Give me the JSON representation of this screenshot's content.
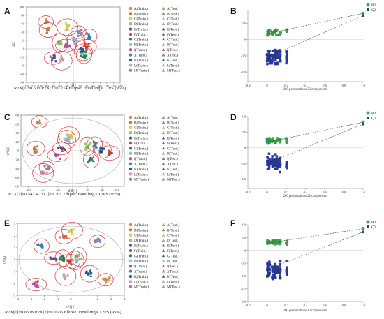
{
  "panel_labels": [
    "A",
    "B",
    "C",
    "D",
    "E",
    "F"
  ],
  "legend": {
    "colors": [
      "#e8923a",
      "#e07b30",
      "#f4e23c",
      "#9dd35a",
      "#5a4a9c",
      "#e03c2c",
      "#1a8a4a",
      "#a8c8e8",
      "#c24ca8",
      "#3a86c4",
      "#1a5a9c",
      "#e7a8c0",
      "#9a8cc0"
    ],
    "train_labels": [
      "A(Train.)",
      "B(Train.)",
      "C(Train.)",
      "D(Train.)",
      "E(Train.)",
      "F(Train.)",
      "G(Train.)",
      "H(Train.)",
      "I(Train.)",
      "J(Train.)",
      "K(Train.)",
      "L(Train.)",
      "M(Train.)"
    ],
    "test_labels": [
      "A(Test.)",
      "B(Test.)",
      "C(Test.)",
      "D(Test.)",
      "E(Test.)",
      "F(Test.)",
      "G(Test.)",
      "H(Test.)",
      "I(Test.)",
      "J(Test.)",
      "K(Test.)",
      "L(Test.)",
      "M(Test.)"
    ]
  },
  "chart_data": [
    {
      "type": "scatter",
      "panel": "A",
      "xlabel": "t[1]",
      "ylabel": "t[2]",
      "xlim": [
        -140,
        140
      ],
      "ylim": [
        -80,
        100
      ],
      "xticks": [
        "-140",
        "-120",
        "-100",
        "-80",
        "-60",
        "-40",
        "-20",
        "0",
        "20",
        "40",
        "60",
        "80",
        "100",
        "120",
        "140"
      ],
      "yticks": [
        "100",
        "80",
        "60",
        "40",
        "20",
        "0",
        "-20",
        "-40",
        "-60",
        "-80"
      ],
      "caption": "R2X[1]=0.503    R2X[2]=0.214    Ellipse: Hotelling's T2PS (95%)",
      "centers": [
        [
          -82,
          64
        ],
        [
          -75,
          45
        ],
        [
          -18,
          52
        ],
        [
          -40,
          14
        ],
        [
          -60,
          -22
        ],
        [
          38,
          5
        ],
        [
          32,
          -15
        ],
        [
          8,
          20
        ],
        [
          -22,
          8
        ],
        [
          48,
          30
        ],
        [
          30,
          -8
        ],
        [
          -35,
          -28
        ],
        [
          15,
          40
        ]
      ]
    },
    {
      "type": "scatter",
      "panel": "B",
      "xlim": [
        -0.2,
        1.0
      ],
      "ylim": [
        -1.3,
        0.9
      ],
      "xticks": [
        "-0.2",
        "0",
        "0.2",
        "0.4",
        "0.6",
        "0.8",
        "1.0"
      ],
      "yticks": [
        "0.5",
        "0",
        "-0.5",
        "-1.0"
      ],
      "caption": "200 permutations 23 components",
      "series": [
        {
          "name": "R2",
          "intercept_point": [
            0,
            0.18
          ],
          "endpoint": [
            1.0,
            0.81
          ]
        },
        {
          "name": "Q2",
          "intercept_point": [
            0,
            -0.55
          ],
          "endpoint": [
            1.0,
            0.74
          ]
        }
      ]
    },
    {
      "type": "scatter",
      "panel": "C",
      "xlabel": "tPS[1]",
      "ylabel": "tPS[2]",
      "xlim": [
        -70,
        70
      ],
      "ylim": [
        -80,
        80
      ],
      "xticks": [
        "-60",
        "-40",
        "-20",
        "0",
        "20",
        "40",
        "60"
      ],
      "yticks": [
        "80",
        "60",
        "40",
        "20",
        "0",
        "-20",
        "-40",
        "-60",
        "-80"
      ],
      "caption": "R2X[1]=0.543    R2X[2]=0.301    Ellipse: Hotelling's T2PS (95%)",
      "centers": [
        [
          -45,
          65
        ],
        [
          -50,
          5
        ],
        [
          -5,
          35
        ],
        [
          20,
          10
        ],
        [
          -15,
          5
        ],
        [
          50,
          -5
        ],
        [
          25,
          -20
        ],
        [
          -8,
          25
        ],
        [
          -20,
          -10
        ],
        [
          30,
          15
        ],
        [
          40,
          2
        ],
        [
          -40,
          -50
        ],
        [
          -35,
          -38
        ]
      ]
    },
    {
      "type": "scatter",
      "panel": "D",
      "xlim": [
        -0.2,
        1.0
      ],
      "ylim": [
        -1.3,
        1.0
      ],
      "xticks": [
        "-0.2",
        "0",
        "0.2",
        "0.4",
        "0.6",
        "0.8",
        "1.0"
      ],
      "yticks": [
        "1.0",
        "0.5",
        "0",
        "-0.5",
        "-1.0"
      ],
      "caption": "200 permutations 22 components",
      "series": [
        {
          "name": "R2",
          "intercept_point": [
            0,
            0.18
          ],
          "endpoint": [
            1.0,
            0.82
          ]
        },
        {
          "name": "Q2",
          "intercept_point": [
            0,
            -0.5
          ],
          "endpoint": [
            1.0,
            0.76
          ]
        }
      ]
    },
    {
      "type": "scatter",
      "panel": "E",
      "xlabel": "tPS[1]",
      "ylabel": "tPS[2]",
      "xlim": [
        -4,
        4
      ],
      "ylim": [
        -3,
        3
      ],
      "xticks": [
        "-4",
        "-3",
        "-2",
        "-1",
        "0",
        "1",
        "2",
        "3",
        "4"
      ],
      "yticks": [
        "3",
        "2",
        "1",
        "0",
        "-1",
        "-2",
        "-3"
      ],
      "caption": "R2X[1]=0.0508    R2X[2]=0.0505    Ellipse: Hotelling's T2PS (95%)",
      "centers": [
        [
          2.6,
          -1.7
        ],
        [
          -0.5,
          1.9
        ],
        [
          0.1,
          2.4
        ],
        [
          0.6,
          0.2
        ],
        [
          -1.3,
          0.1
        ],
        [
          -0.1,
          -0.2
        ],
        [
          -0.6,
          0.1
        ],
        [
          0.3,
          -0.1
        ],
        [
          -2.6,
          -2.1
        ],
        [
          -2.2,
          1.1
        ],
        [
          1.4,
          -1.2
        ],
        [
          -0.4,
          -1.4
        ],
        [
          2.0,
          1.5
        ]
      ]
    },
    {
      "type": "scatter",
      "panel": "F",
      "xlim": [
        -0.2,
        1.0
      ],
      "ylim": [
        -2.0,
        1.0
      ],
      "xticks": [
        "-0.2",
        "0",
        "0.2",
        "0.4",
        "0.6",
        "0.8",
        "1.0"
      ],
      "yticks": [
        "1.0",
        "0.5",
        "0",
        "-0.5",
        "-1.0",
        "-1.5",
        "-2.0"
      ],
      "caption": "200 permutations 12 components",
      "series": [
        {
          "name": "R2",
          "intercept_point": [
            0,
            0.28
          ],
          "endpoint": [
            1.0,
            0.85
          ]
        },
        {
          "name": "Q2",
          "intercept_point": [
            0,
            -0.75
          ],
          "endpoint": [
            1.0,
            0.72
          ]
        }
      ]
    }
  ]
}
